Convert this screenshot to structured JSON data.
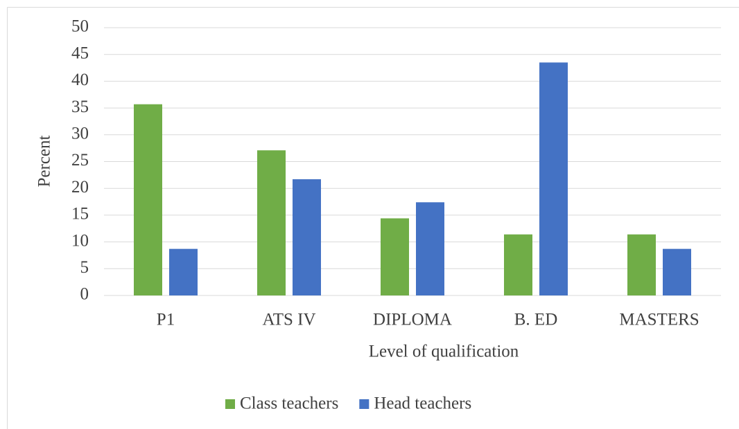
{
  "chart_data": {
    "type": "bar",
    "x_label": "Level of qualification",
    "y_label": "Percent",
    "categories": [
      "P1",
      "ATS IV",
      "DIPLOMA",
      "B. ED",
      "MASTERS"
    ],
    "series": [
      {
        "name": "Class teachers",
        "color": "#70ad47",
        "values": [
          35.7,
          27.1,
          14.4,
          11.4,
          11.4
        ]
      },
      {
        "name": "Head teachers",
        "color": "#4472c4",
        "values": [
          8.7,
          21.7,
          17.4,
          43.5,
          8.7
        ]
      }
    ],
    "ylim": [
      0,
      50
    ],
    "yticks": [
      0,
      5,
      10,
      15,
      20,
      25,
      30,
      35,
      40,
      45,
      50
    ],
    "grid": true,
    "legend": "bottom"
  }
}
